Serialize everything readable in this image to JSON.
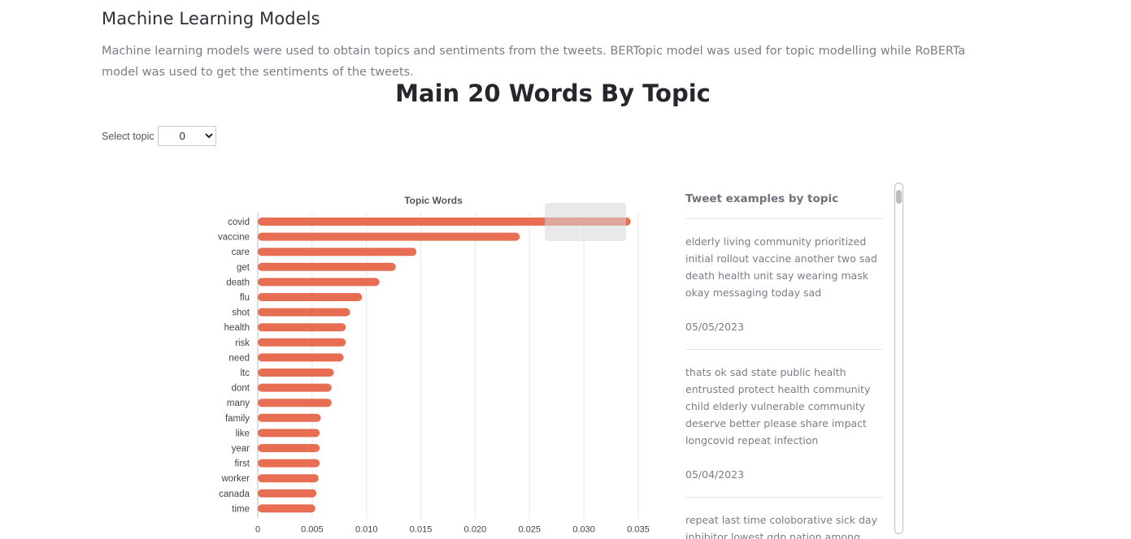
{
  "section": {
    "title": "Machine Learning Models",
    "description": "Machine learning models were used to obtain topics and sentiments from the tweets. BERTopic model was used for topic modelling while RoBERTa model was used to get the sentiments of the tweets."
  },
  "main_title": "Main 20 Words By Topic",
  "topic_select": {
    "label": "Select topic",
    "value": "0",
    "options": [
      "0"
    ]
  },
  "colors": {
    "bar": "#e76e52",
    "grid": "#e6e6e6"
  },
  "chart_data": {
    "type": "bar",
    "orientation": "horizontal",
    "title": "Topic Words",
    "xlabel": "",
    "ylabel": "",
    "xlim": [
      0,
      0.035
    ],
    "xticks": [
      "0",
      "0.005",
      "0.010",
      "0.015",
      "0.020",
      "0.025",
      "0.030",
      "0.035"
    ],
    "grid": true,
    "categories": [
      "covid",
      "vaccine",
      "care",
      "get",
      "death",
      "flu",
      "shot",
      "health",
      "risk",
      "need",
      "ltc",
      "dont",
      "many",
      "family",
      "like",
      "year",
      "first",
      "worker",
      "canada",
      "time"
    ],
    "values": [
      0.0343,
      0.0241,
      0.0146,
      0.0127,
      0.0112,
      0.0096,
      0.0085,
      0.0081,
      0.0081,
      0.0079,
      0.007,
      0.0068,
      0.0068,
      0.0058,
      0.0057,
      0.0057,
      0.0057,
      0.0056,
      0.0054,
      0.0053
    ]
  },
  "tweets": {
    "title": "Tweet examples by topic",
    "items": [
      {
        "text": "elderly living community prioritized initial rollout vaccine another two sad death health unit say wearing mask okay messaging today sad",
        "date": "05/05/2023"
      },
      {
        "text": "thats ok sad state public health entrusted protect health community child elderly vulnerable community deserve better please share impact longcovid repeat infection",
        "date": "05/04/2023"
      },
      {
        "text": "repeat last time coloborative sick day inhibitor lowest gdp nation among lowest",
        "date": ""
      }
    ]
  }
}
